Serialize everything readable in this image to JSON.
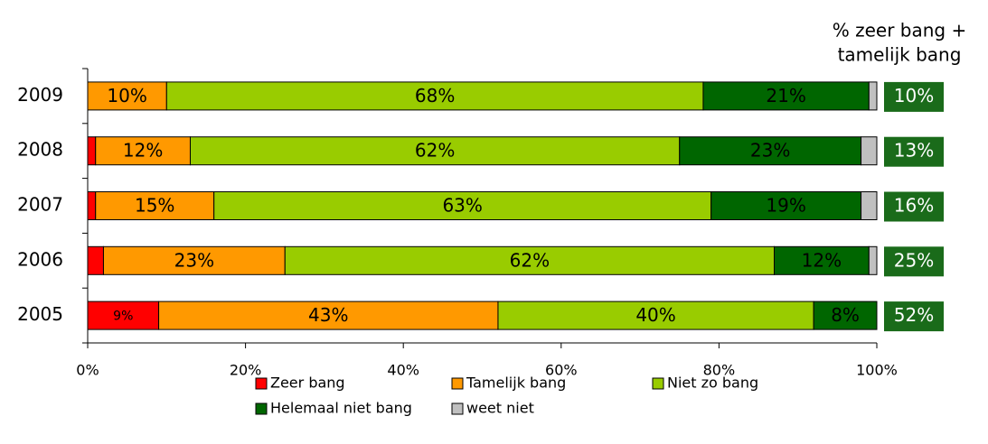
{
  "chart_data": {
    "type": "stacked_barh",
    "categories": [
      "2009",
      "2008",
      "2007",
      "2006",
      "2005"
    ],
    "series": [
      {
        "name": "Zeer bang",
        "color": "#ff0000",
        "values": [
          0,
          1,
          1,
          2,
          9
        ],
        "value_labels": [
          null,
          null,
          null,
          null,
          "9%"
        ]
      },
      {
        "name": "Tamelijk bang",
        "color": "#ff9900",
        "values": [
          10,
          12,
          15,
          23,
          43
        ],
        "value_labels": [
          "10%",
          "12%",
          "15%",
          "23%",
          "43%"
        ]
      },
      {
        "name": "Niet zo bang",
        "color": "#99cc00",
        "values": [
          68,
          62,
          63,
          62,
          40
        ],
        "value_labels": [
          "68%",
          "62%",
          "63%",
          "62%",
          "40%"
        ]
      },
      {
        "name": "Helemaal niet bang",
        "color": "#006600",
        "values": [
          21,
          23,
          19,
          12,
          8
        ],
        "value_labels": [
          "21%",
          "23%",
          "19%",
          "12%",
          "8%"
        ]
      },
      {
        "name": "weet niet",
        "color": "#c0c0c0",
        "values": [
          1,
          2,
          2,
          1,
          0
        ],
        "value_labels": [
          null,
          null,
          null,
          null,
          null
        ]
      }
    ],
    "xlim": [
      0,
      100
    ],
    "xticks": [
      {
        "value": 0,
        "label": "0%"
      },
      {
        "value": 20,
        "label": "20%"
      },
      {
        "value": 40,
        "label": "40%"
      },
      {
        "value": 60,
        "label": "60%"
      },
      {
        "value": 80,
        "label": "80%"
      },
      {
        "value": 100,
        "label": "100%"
      }
    ],
    "totals": {
      "title": [
        "% zeer bang +",
        "tamelijk bang"
      ],
      "color": "#1a6b1a",
      "values": [
        10,
        13,
        16,
        25,
        52
      ],
      "value_labels": [
        "10%",
        "13%",
        "16%",
        "25%",
        "52%"
      ]
    }
  }
}
